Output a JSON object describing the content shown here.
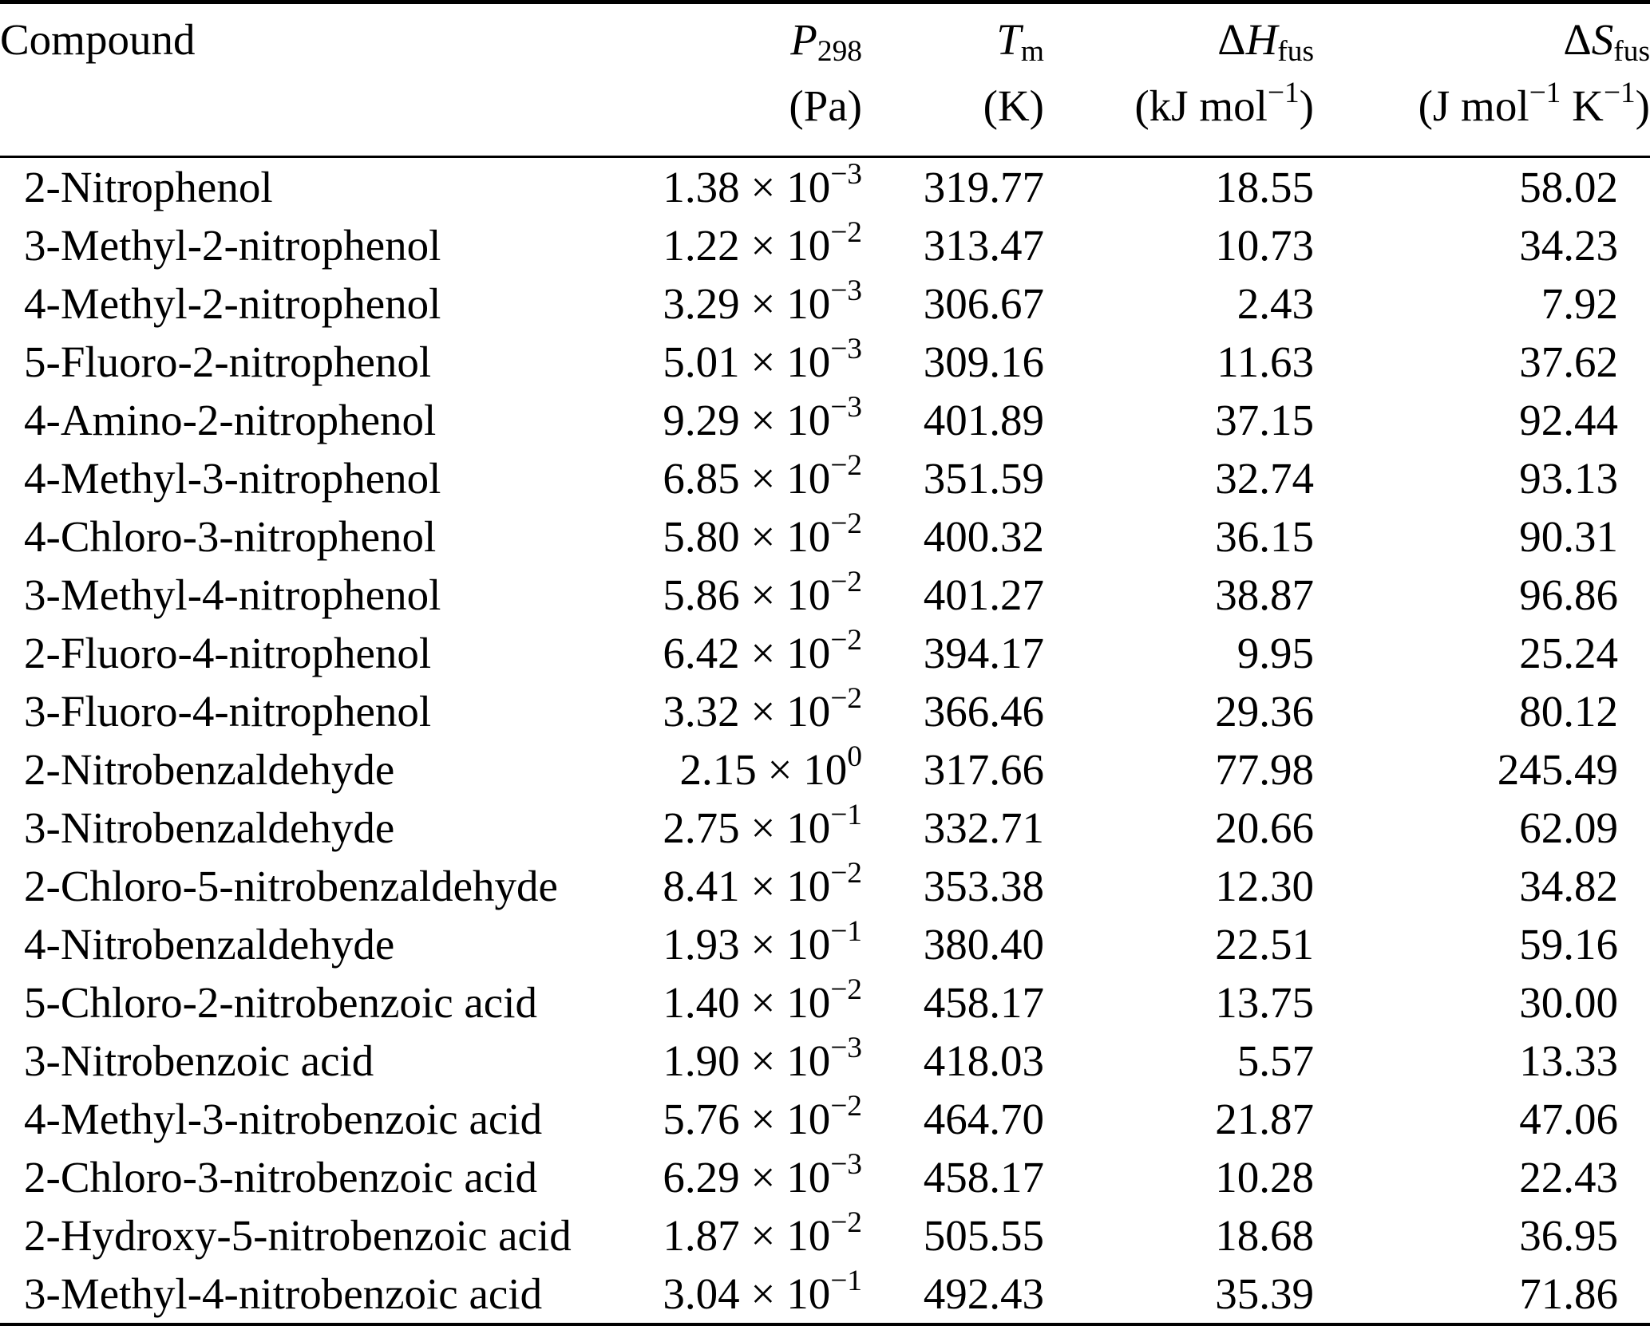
{
  "colors": {
    "background": "#ffffff",
    "text": "#000000",
    "rule": "#000000"
  },
  "table": {
    "header": {
      "compound_label": "Compound",
      "columns": [
        {
          "key": "p",
          "symbol": [
            {
              "t": "P",
              "style": "italic"
            },
            {
              "t": "298",
              "style": "sub"
            }
          ],
          "unit": [
            {
              "t": "(Pa)"
            }
          ]
        },
        {
          "key": "tm",
          "symbol": [
            {
              "t": "T",
              "style": "italic"
            },
            {
              "t": "m",
              "style": "sub"
            }
          ],
          "unit": [
            {
              "t": "(K)"
            }
          ]
        },
        {
          "key": "dh",
          "symbol": [
            {
              "t": "Δ"
            },
            {
              "t": "H",
              "style": "italic"
            },
            {
              "t": "fus",
              "style": "sub"
            }
          ],
          "unit": [
            {
              "t": "(kJ mol"
            },
            {
              "t": "−1",
              "style": "sup"
            },
            {
              "t": ")"
            }
          ]
        },
        {
          "key": "ds",
          "symbol": [
            {
              "t": "Δ"
            },
            {
              "t": "S",
              "style": "italic"
            },
            {
              "t": "fus",
              "style": "sub"
            }
          ],
          "unit": [
            {
              "t": "(J mol"
            },
            {
              "t": "−1",
              "style": "sup"
            },
            {
              "t": " K"
            },
            {
              "t": "−1",
              "style": "sup"
            },
            {
              "t": ")"
            }
          ]
        }
      ]
    },
    "notation": {
      "times": "×",
      "base": "10"
    },
    "rows": [
      {
        "compound": "2-Nitrophenol",
        "p_mantissa": "1.38",
        "p_exponent": "−3",
        "tm": "319.77",
        "dh": "18.55",
        "ds": "58.02"
      },
      {
        "compound": "3-Methyl-2-nitrophenol",
        "p_mantissa": "1.22",
        "p_exponent": "−2",
        "tm": "313.47",
        "dh": "10.73",
        "ds": "34.23"
      },
      {
        "compound": "4-Methyl-2-nitrophenol",
        "p_mantissa": "3.29",
        "p_exponent": "−3",
        "tm": "306.67",
        "dh": "2.43",
        "ds": "7.92"
      },
      {
        "compound": "5-Fluoro-2-nitrophenol",
        "p_mantissa": "5.01",
        "p_exponent": "−3",
        "tm": "309.16",
        "dh": "11.63",
        "ds": "37.62"
      },
      {
        "compound": "4-Amino-2-nitrophenol",
        "p_mantissa": "9.29",
        "p_exponent": "−3",
        "tm": "401.89",
        "dh": "37.15",
        "ds": "92.44"
      },
      {
        "compound": "4-Methyl-3-nitrophenol",
        "p_mantissa": "6.85",
        "p_exponent": "−2",
        "tm": "351.59",
        "dh": "32.74",
        "ds": "93.13"
      },
      {
        "compound": "4-Chloro-3-nitrophenol",
        "p_mantissa": "5.80",
        "p_exponent": "−2",
        "tm": "400.32",
        "dh": "36.15",
        "ds": "90.31"
      },
      {
        "compound": "3-Methyl-4-nitrophenol",
        "p_mantissa": "5.86",
        "p_exponent": "−2",
        "tm": "401.27",
        "dh": "38.87",
        "ds": "96.86"
      },
      {
        "compound": "2-Fluoro-4-nitrophenol",
        "p_mantissa": "6.42",
        "p_exponent": "−2",
        "tm": "394.17",
        "dh": "9.95",
        "ds": "25.24"
      },
      {
        "compound": "3-Fluoro-4-nitrophenol",
        "p_mantissa": "3.32",
        "p_exponent": "−2",
        "tm": "366.46",
        "dh": "29.36",
        "ds": "80.12"
      },
      {
        "compound": "2-Nitrobenzaldehyde",
        "p_mantissa": "2.15",
        "p_exponent": "0",
        "tm": "317.66",
        "dh": "77.98",
        "ds": "245.49"
      },
      {
        "compound": "3-Nitrobenzaldehyde",
        "p_mantissa": "2.75",
        "p_exponent": "−1",
        "tm": "332.71",
        "dh": "20.66",
        "ds": "62.09"
      },
      {
        "compound": "2-Chloro-5-nitrobenzaldehyde",
        "p_mantissa": "8.41",
        "p_exponent": "−2",
        "tm": "353.38",
        "dh": "12.30",
        "ds": "34.82"
      },
      {
        "compound": "4-Nitrobenzaldehyde",
        "p_mantissa": "1.93",
        "p_exponent": "−1",
        "tm": "380.40",
        "dh": "22.51",
        "ds": "59.16"
      },
      {
        "compound": "5-Chloro-2-nitrobenzoic acid",
        "p_mantissa": "1.40",
        "p_exponent": "−2",
        "tm": "458.17",
        "dh": "13.75",
        "ds": "30.00"
      },
      {
        "compound": "3-Nitrobenzoic acid",
        "p_mantissa": "1.90",
        "p_exponent": "−3",
        "tm": "418.03",
        "dh": "5.57",
        "ds": "13.33"
      },
      {
        "compound": "4-Methyl-3-nitrobenzoic acid",
        "p_mantissa": "5.76",
        "p_exponent": "−2",
        "tm": "464.70",
        "dh": "21.87",
        "ds": "47.06"
      },
      {
        "compound": "2-Chloro-3-nitrobenzoic acid",
        "p_mantissa": "6.29",
        "p_exponent": "−3",
        "tm": "458.17",
        "dh": "10.28",
        "ds": "22.43"
      },
      {
        "compound": "2-Hydroxy-5-nitrobenzoic acid",
        "p_mantissa": "1.87",
        "p_exponent": "−2",
        "tm": "505.55",
        "dh": "18.68",
        "ds": "36.95"
      },
      {
        "compound": "3-Methyl-4-nitrobenzoic acid",
        "p_mantissa": "3.04",
        "p_exponent": "−1",
        "tm": "492.43",
        "dh": "35.39",
        "ds": "71.86"
      }
    ]
  }
}
